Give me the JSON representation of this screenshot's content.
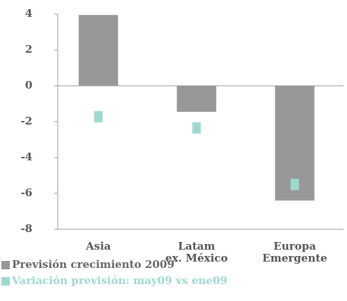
{
  "chart_data": {
    "type": "bar",
    "categories": [
      [
        "Asia"
      ],
      [
        "Latam",
        "ex. México"
      ],
      [
        "Europa",
        "Emergente"
      ]
    ],
    "series": [
      {
        "name": "Previsión crecimiento 2009",
        "color": "#98989a",
        "values": [
          3.95,
          -1.45,
          -6.4
        ]
      },
      {
        "name": "Variación previsión: may09 vs ene09",
        "color": "#9fd8cf",
        "values": [
          -1.72,
          -2.35,
          -5.5
        ],
        "marker": "square"
      }
    ],
    "ylim": [
      -8,
      4
    ],
    "yticks": [
      -8,
      -6,
      -4,
      -2,
      0,
      2,
      4
    ]
  }
}
